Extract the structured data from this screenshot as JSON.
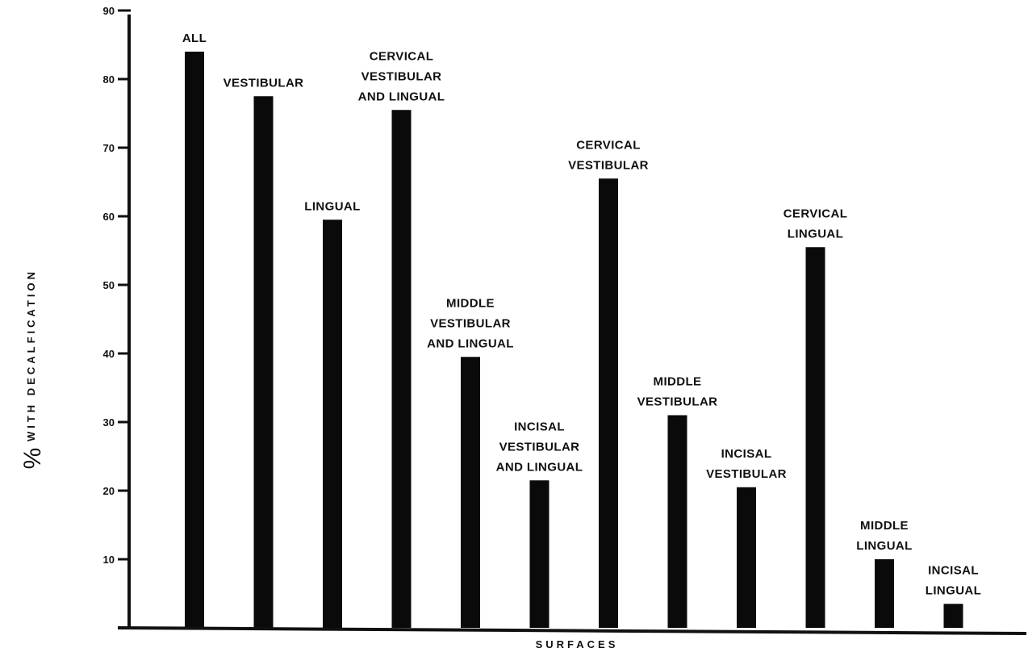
{
  "chart_data": {
    "type": "bar",
    "xlabel": "SURFACES",
    "ylabel_symbol": "%",
    "ylabel": "WITH DECALFICATION",
    "ylim": [
      0,
      90
    ],
    "yticks": [
      10,
      20,
      30,
      40,
      50,
      60,
      70,
      80,
      90
    ],
    "grid": false,
    "legend": "none",
    "categories": [
      [
        "ALL"
      ],
      [
        "VESTIBULAR"
      ],
      [
        "LINGUAL"
      ],
      [
        "CERVICAL",
        "VESTIBULAR",
        "AND LINGUAL"
      ],
      [
        "MIDDLE",
        "VESTIBULAR",
        "AND LINGUAL"
      ],
      [
        "INCISAL",
        "VESTIBULAR",
        "AND LINGUAL"
      ],
      [
        "CERVICAL",
        "VESTIBULAR"
      ],
      [
        "MIDDLE",
        "VESTIBULAR"
      ],
      [
        "INCISAL",
        "VESTIBULAR"
      ],
      [
        "CERVICAL",
        "LINGUAL"
      ],
      [
        "MIDDLE",
        "LINGUAL"
      ],
      [
        "INCISAL",
        "LINGUAL"
      ]
    ],
    "values": [
      84,
      77.5,
      59.5,
      75.5,
      39.5,
      21.5,
      65.5,
      31,
      20.5,
      55.5,
      10,
      3.5
    ],
    "bar_color": "#0a0a0a"
  }
}
